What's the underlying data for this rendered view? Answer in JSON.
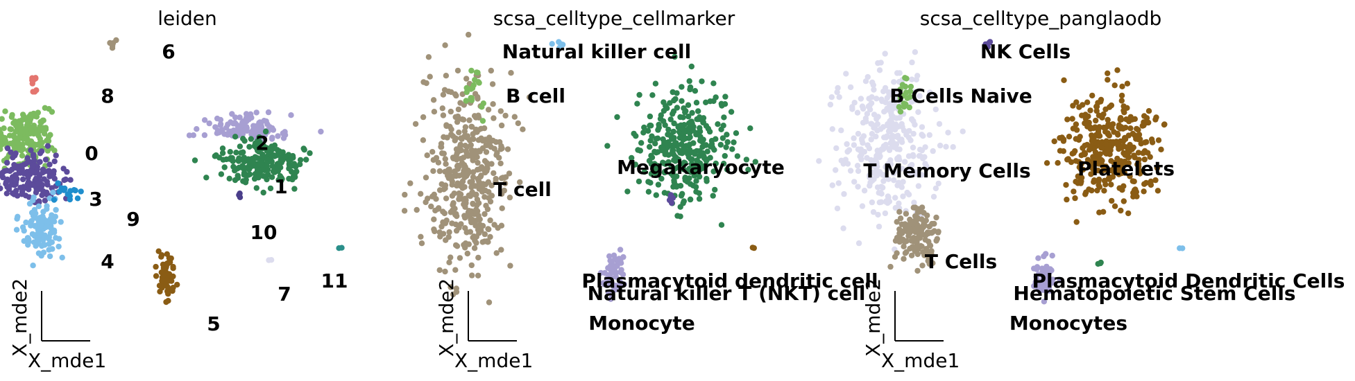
{
  "chart_data": [
    {
      "type": "scatter",
      "title": "leiden",
      "xlabel": "X_mde1",
      "ylabel": "X_mde2",
      "grid": false,
      "legend": "on data",
      "labels": [
        "6",
        "8",
        "0",
        "2",
        "1",
        "3",
        "9",
        "10",
        "4",
        "11",
        "7",
        "5"
      ],
      "clusters": [
        {
          "label": "0",
          "color": "#7cbb5f",
          "center": [
            -2.35,
            1.2
          ],
          "spread": [
            0.2,
            0.32
          ],
          "n": 170
        },
        {
          "label": "3",
          "color": "#5c4b9b",
          "center": [
            -2.25,
            0.15
          ],
          "spread": [
            0.25,
            0.28
          ],
          "n": 150
        },
        {
          "label": "4",
          "color": "#7dbfea",
          "center": [
            -2.1,
            -1.15
          ],
          "spread": [
            0.14,
            0.34
          ],
          "n": 110
        },
        {
          "label": "9",
          "color": "#1f8ecd",
          "center": [
            -1.7,
            -0.2
          ],
          "spread": [
            0.1,
            0.12
          ],
          "n": 14
        },
        {
          "label": "8",
          "color": "#e4756f",
          "center": [
            -2.2,
            2.55
          ],
          "spread": [
            0.03,
            0.15
          ],
          "n": 10
        },
        {
          "label": "6",
          "color": "#a09279",
          "center": [
            -1.1,
            3.45
          ],
          "spread": [
            0.05,
            0.05
          ],
          "n": 5
        },
        {
          "label": "2",
          "color": "#a79fd2",
          "center": [
            0.8,
            1.4
          ],
          "spread": [
            0.3,
            0.15
          ],
          "n": 120
        },
        {
          "label": "1",
          "color": "#2f8450",
          "center": [
            1.1,
            0.5
          ],
          "spread": [
            0.32,
            0.3
          ],
          "n": 190
        },
        {
          "label": "10",
          "color": "#4a3e8a",
          "center": [
            0.75,
            -0.3
          ],
          "spread": [
            0.02,
            0.05
          ],
          "n": 3
        },
        {
          "label": "11",
          "color": "#2a8f8a",
          "center": [
            2.2,
            -1.6
          ],
          "spread": [
            0.02,
            0.02
          ],
          "n": 2
        },
        {
          "label": "7",
          "color": "#dcdcee",
          "center": [
            1.2,
            -1.9
          ],
          "spread": [
            0.02,
            0.02
          ],
          "n": 2
        },
        {
          "label": "5",
          "color": "#8a5c14",
          "center": [
            -0.3,
            -2.25
          ],
          "spread": [
            0.07,
            0.3
          ],
          "n": 60
        }
      ]
    },
    {
      "type": "scatter",
      "title": "scsa_celltype_cellmarker",
      "xlabel": "X_mde1",
      "ylabel": "X_mde2",
      "grid": false,
      "legend": "on data",
      "labels": [
        "Natural killer cell",
        "B cell",
        "Megakaryocyte",
        "T cell",
        "Plasmacytoid dendritic cell",
        "Natural killer T (NKT) cell",
        "Monocyte"
      ],
      "clusters": [
        {
          "label": "T cell",
          "color": "#a09279",
          "center": [
            -2.1,
            0.2
          ],
          "spread": [
            0.3,
            1.2
          ],
          "n": 420
        },
        {
          "label": "B cell",
          "color": "#7cbb5f",
          "center": [
            -2.0,
            2.4
          ],
          "spread": [
            0.06,
            0.3
          ],
          "n": 18
        },
        {
          "label": "Natural killer cell",
          "color": "#7dbfea",
          "center": [
            -0.8,
            3.5
          ],
          "spread": [
            0.04,
            0.04
          ],
          "n": 5
        },
        {
          "label": "Megakaryocyte",
          "color": "#2f8450",
          "center": [
            1.0,
            0.9
          ],
          "spread": [
            0.35,
            0.7
          ],
          "n": 330
        },
        {
          "label": "Monocyte",
          "color": "#a79fd2",
          "center": [
            0.0,
            -2.35
          ],
          "spread": [
            0.07,
            0.3
          ],
          "n": 55
        },
        {
          "label": "Natural killer T (NKT) cell",
          "color": "#5c4b9b",
          "center": [
            0.8,
            -0.4
          ],
          "spread": [
            0.02,
            0.08
          ],
          "n": 5
        },
        {
          "label": "Plasmacytoid dendritic cell",
          "color": "#8a5c14",
          "center": [
            2.0,
            -1.6
          ],
          "spread": [
            0.02,
            0.02
          ],
          "n": 2
        }
      ]
    },
    {
      "type": "scatter",
      "title": "scsa_celltype_panglaodb",
      "xlabel": "X_mde1",
      "ylabel": "X_mde2",
      "grid": false,
      "legend": "on data",
      "labels": [
        "NK Cells",
        "B Cells Naive",
        "T Memory Cells",
        "Platelets",
        "T Cells",
        "Plasmacytoid Dendritic Cells",
        "Hematopoietic Stem Cells",
        "Monocytes"
      ],
      "clusters": [
        {
          "label": "T Memory Cells",
          "color": "#dcdcee",
          "center": [
            -2.2,
            0.9
          ],
          "spread": [
            0.35,
            0.9
          ],
          "n": 330
        },
        {
          "label": "T Cells",
          "color": "#a09279",
          "center": [
            -1.8,
            -1.3
          ],
          "spread": [
            0.16,
            0.4
          ],
          "n": 130
        },
        {
          "label": "B Cells Naive",
          "color": "#7cbb5f",
          "center": [
            -1.95,
            2.3
          ],
          "spread": [
            0.06,
            0.28
          ],
          "n": 18
        },
        {
          "label": "NK Cells",
          "color": "#5c4b9b",
          "center": [
            -0.75,
            3.5
          ],
          "spread": [
            0.04,
            0.05
          ],
          "n": 5
        },
        {
          "label": "Platelets",
          "color": "#8a5c14",
          "center": [
            1.0,
            0.9
          ],
          "spread": [
            0.35,
            0.7
          ],
          "n": 330
        },
        {
          "label": "Monocytes",
          "color": "#a79fd2",
          "center": [
            0.05,
            -2.35
          ],
          "spread": [
            0.07,
            0.3
          ],
          "n": 55
        },
        {
          "label": "Hematopoietic Stem Cells",
          "color": "#2f8450",
          "center": [
            0.85,
            -1.95
          ],
          "spread": [
            0.02,
            0.03
          ],
          "n": 3
        },
        {
          "label": "Plasmacytoid Dendritic Cells",
          "color": "#7dbfea",
          "center": [
            2.0,
            -1.6
          ],
          "spread": [
            0.02,
            0.02
          ],
          "n": 2
        }
      ]
    }
  ]
}
